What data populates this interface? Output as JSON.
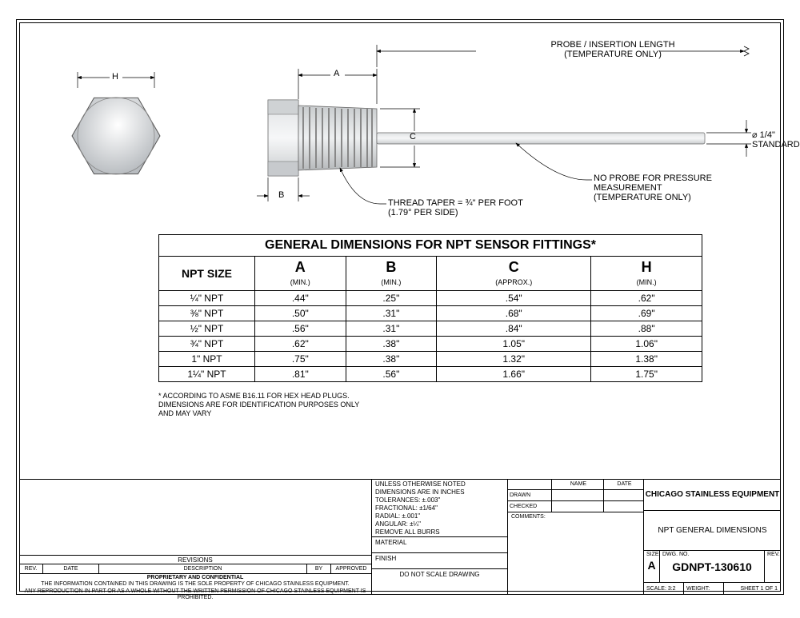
{
  "drawing": {
    "labels": {
      "H": "H",
      "A": "A",
      "B": "B",
      "C": "C",
      "probeLine1": "PROBE / INSERTION LENGTH",
      "probeLine2": "(TEMPERATURE ONLY)",
      "diam": "⌀ 1/4\"",
      "diamSub": "STANDARD",
      "noProbe1": "NO PROBE FOR PRESSURE",
      "noProbe2": "MEASUREMENT",
      "noProbe3": "(TEMPERATURE ONLY)",
      "taper1": "THREAD TAPER = ¾\" PER FOOT",
      "taper2": "(1.79° PER SIDE)"
    }
  },
  "table": {
    "caption": "GENERAL DIMENSIONS FOR NPT SENSOR FITTINGS*",
    "columns": [
      {
        "big": "NPT SIZE",
        "sub": ""
      },
      {
        "big": "A",
        "sub": "(MIN.)"
      },
      {
        "big": "B",
        "sub": "(MIN.)"
      },
      {
        "big": "C",
        "sub": "(APPROX.)"
      },
      {
        "big": "H",
        "sub": "(MIN.)"
      }
    ],
    "rows": [
      [
        "¼\" NPT",
        ".44\"",
        ".25\"",
        ".54\"",
        ".62\""
      ],
      [
        "⅜\" NPT",
        ".50\"",
        ".31\"",
        ".68\"",
        ".69\""
      ],
      [
        "½\" NPT",
        ".56\"",
        ".31\"",
        ".84\"",
        ".88\""
      ],
      [
        "¾\" NPT",
        ".62\"",
        ".38\"",
        "1.05\"",
        "1.06\""
      ],
      [
        "1\" NPT",
        ".75\"",
        ".38\"",
        "1.32\"",
        "1.38\""
      ],
      [
        "1¼\" NPT",
        ".81\"",
        ".56\"",
        "1.66\"",
        "1.75\""
      ]
    ],
    "footnote1": "* ACCORDING TO ASME B16.11 FOR HEX HEAD  PLUGS.",
    "footnote2": "DIMENSIONS ARE FOR IDENTIFICATION PURPOSES ONLY",
    "footnote3": "AND MAY VARY"
  },
  "titleblock": {
    "revisionsTitle": "REVISIONS",
    "revHeaders": {
      "rev": "REV.",
      "date": "DATE",
      "desc": "DESCRIPTION",
      "by": "BY",
      "app": "APPROVED"
    },
    "proprietaryTitle": "PROPRIETARY AND CONFIDENTIAL",
    "proprietary1": "THE INFORMATION CONTAINED IN THIS DRAWING IS THE SOLE PROPERTY OF CHICAGO STAINLESS EQUIPMENT.",
    "proprietary2": "ANY REPRODUCTION IN PART OR AS A WHOLE WITHOUT THE WRITTEN PERMISSION OF CHICAGO STAINLESS EQUIPMENT IS PROHIBITED.",
    "notes": {
      "l1": "UNLESS OTHERWISE NOTED",
      "l2": "DIMENSIONS ARE IN INCHES",
      "l3": "TOLERANCES:  ±.003\"",
      "l4": "FRACTIONAL: ±1/64\"",
      "l5": "RADIAL: ±.001\"",
      "l6": "ANGULAR: ±¼\"",
      "l7": "REMOVE ALL BURRS",
      "material": "MATERIAL",
      "finish": "FINISH",
      "noscale": "DO  NOT  SCALE  DRAWING"
    },
    "sign": {
      "name": "NAME",
      "date": "DATE",
      "drawn": "DRAWN",
      "checked": "CHECKED",
      "comments": "COMMENTS:"
    },
    "company": "CHICAGO STAINLESS EQUIPMENT",
    "title": "NPT GENERAL DIMENSIONS",
    "size": "SIZE",
    "sizeVal": "A",
    "dwgnoLabel": "DWG.  NO.",
    "dwgno": "GDNPT-130610",
    "revLabel": "REV.",
    "scale": "SCALE: 3:2",
    "weight": "WEIGHT:",
    "sheet": "SHEET 1 OF 1"
  }
}
